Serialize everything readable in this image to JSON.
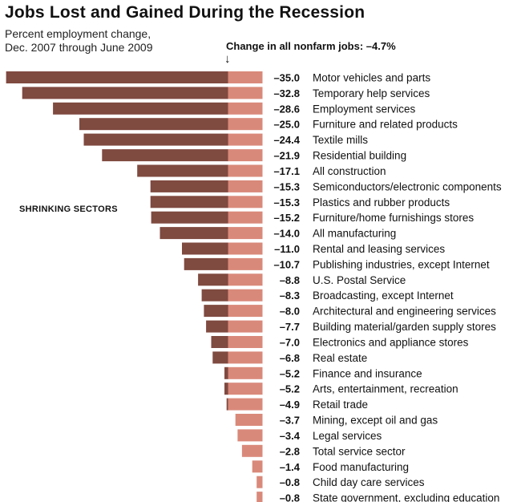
{
  "chart_data": {
    "type": "bar",
    "title": "Jobs Lost and Gained During the Recession",
    "subtitle_lines": [
      "Percent employment change,",
      "Dec. 2007 through June 2009"
    ],
    "reference_label": "Change in all nonfarm jobs: –4.7%",
    "reference_value": -4.7,
    "group_label": "SHRINKING SECTORS",
    "colors": {
      "below_reference": "#7f4a40",
      "above_reference": "#d9897a"
    },
    "categories": [
      "Motor vehicles and parts",
      "Temporary help services",
      "Employment services",
      "Furniture and related products",
      "Textile mills",
      "Residential building",
      "All construction",
      "Semiconductors/electronic components",
      "Plastics and rubber products",
      "Furniture/home furnishings stores",
      "All manufacturing",
      "Rental and leasing services",
      "Publishing industries, except Internet",
      "U.S. Postal Service",
      "Broadcasting, except Internet",
      "Architectural and engineering services",
      "Building material/garden supply stores",
      "Electronics and appliance stores",
      "Real estate",
      "Finance and insurance",
      "Arts, entertainment, recreation",
      "Retail trade",
      "Mining, except oil and gas",
      "Legal services",
      "Total service sector",
      "Food manufacturing",
      "Child day care services",
      "State government, excluding education"
    ],
    "values": [
      -35.0,
      -32.8,
      -28.6,
      -25.0,
      -24.4,
      -21.9,
      -17.1,
      -15.3,
      -15.3,
      -15.2,
      -14.0,
      -11.0,
      -10.7,
      -8.8,
      -8.3,
      -8.0,
      -7.7,
      -7.0,
      -6.8,
      -5.2,
      -5.2,
      -4.9,
      -3.7,
      -3.4,
      -2.8,
      -1.4,
      -0.8,
      -0.8
    ],
    "value_labels": [
      "–35.0",
      "–32.8",
      "–28.6",
      "–25.0",
      "–24.4",
      "–21.9",
      "–17.1",
      "–15.3",
      "–15.3",
      "–15.2",
      "–14.0",
      "–11.0",
      "–10.7",
      "–8.8",
      "–8.3",
      "–8.0",
      "–7.7",
      "–7.0",
      "–6.8",
      "–5.2",
      "–5.2",
      "–4.9",
      "–3.7",
      "–3.4",
      "–2.8",
      "–1.4",
      "–0.8",
      "–0.8"
    ]
  }
}
